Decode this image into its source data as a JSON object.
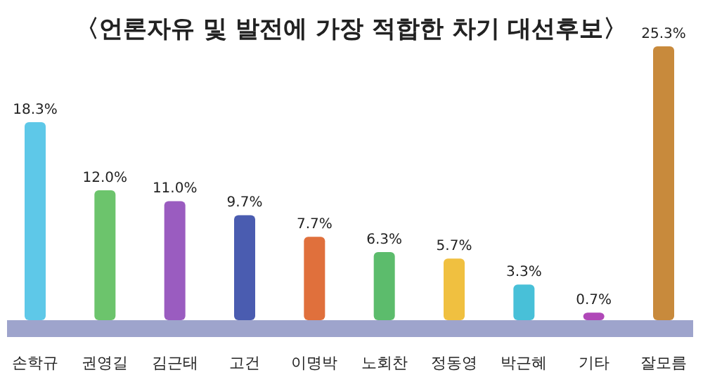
{
  "chart_data": {
    "type": "bar",
    "title": "〈언론자유 및 발전에 가장 적합한 차기 대선후보〉",
    "categories": [
      "손학규",
      "권영길",
      "김근태",
      "고건",
      "이명박",
      "노회찬",
      "정동영",
      "박근혜",
      "기타",
      "잘모름"
    ],
    "values": [
      18.3,
      12.0,
      11.0,
      9.7,
      7.7,
      6.3,
      5.7,
      3.3,
      0.7,
      25.3
    ],
    "colors": [
      "#5ec8e8",
      "#6cc46c",
      "#9a5cc0",
      "#4a5cb0",
      "#e0703c",
      "#5cbc6c",
      "#f0c040",
      "#48c0d8",
      "#b048b8",
      "#c88a3c"
    ],
    "value_labels": [
      "18.3%",
      "12.0%",
      "11.0%",
      "9.7%",
      "7.7%",
      "6.3%",
      "5.7%",
      "3.3%",
      "0.7%",
      "25.3%"
    ]
  }
}
